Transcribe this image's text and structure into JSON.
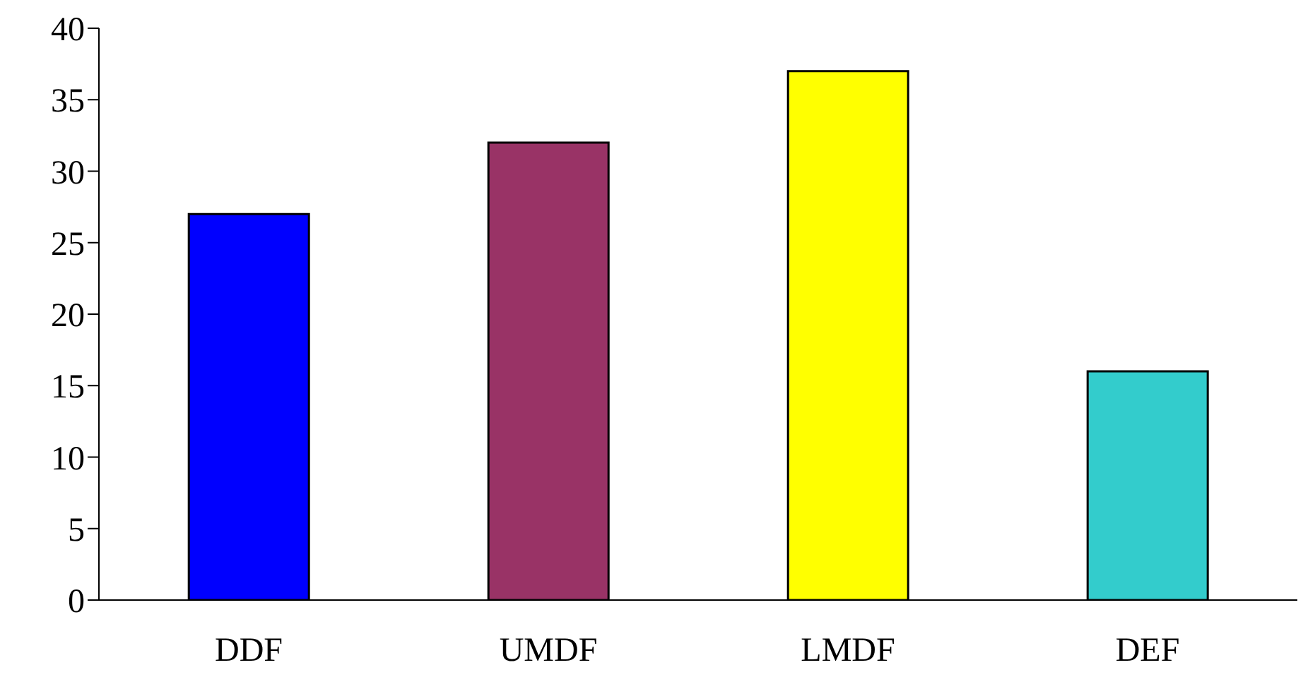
{
  "chart_data": {
    "type": "bar",
    "categories": [
      "DDF",
      "UMDF",
      "LMDF",
      "DEF"
    ],
    "values": [
      27,
      32,
      37,
      16
    ],
    "colors": [
      "#0000ff",
      "#993366",
      "#ffff00",
      "#33cccc"
    ],
    "ylim": [
      0,
      40
    ],
    "yticks": [
      0,
      5,
      10,
      15,
      20,
      25,
      30,
      35,
      40
    ],
    "grid": false,
    "legend": false
  }
}
